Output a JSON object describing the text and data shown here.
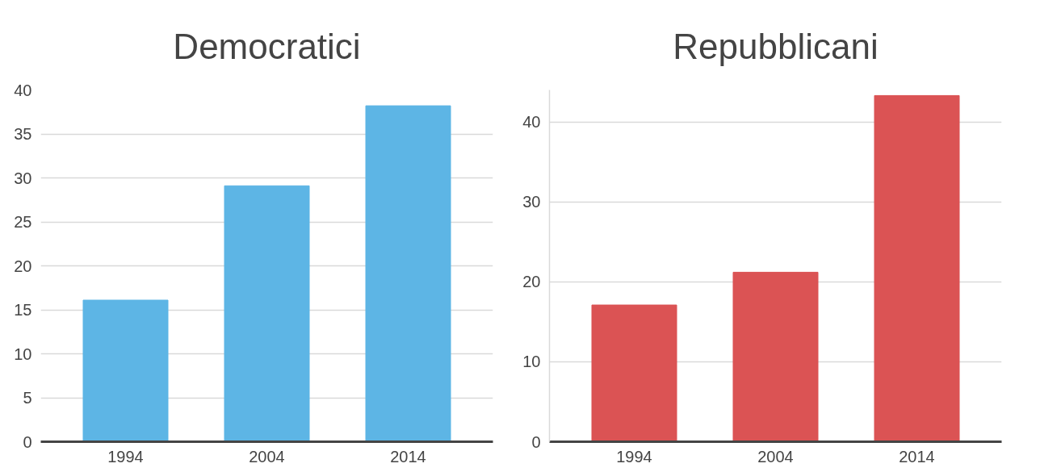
{
  "chart_data": [
    {
      "type": "bar",
      "title": "Democratici",
      "categories": [
        "1994",
        "2004",
        "2014"
      ],
      "values": [
        16.1,
        29.1,
        38.2
      ],
      "color": "#5db5e5",
      "ylim": [
        0,
        40
      ],
      "yticks": [
        0,
        5,
        10,
        15,
        20,
        25,
        30,
        35,
        40
      ],
      "grid": "y"
    },
    {
      "type": "bar",
      "title": "Repubblicani",
      "categories": [
        "1994",
        "2004",
        "2014"
      ],
      "values": [
        17.1,
        21.2,
        43.3
      ],
      "color": "#db5354",
      "ylim": [
        0,
        44
      ],
      "yticks": [
        0,
        10,
        20,
        30,
        40
      ],
      "grid": "y"
    }
  ]
}
